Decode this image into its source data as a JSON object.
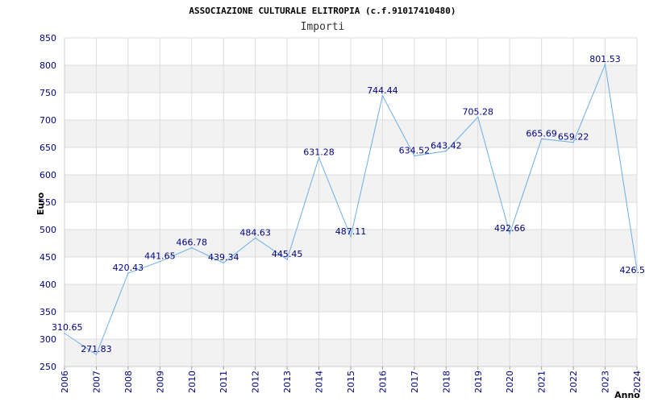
{
  "chart_data": {
    "type": "line",
    "title": "ASSOCIAZIONE CULTURALE ELITROPIA (c.f.91017410480)",
    "subtitle": "Importi",
    "xlabel": "Anno",
    "ylabel": "Euro",
    "ylim": [
      250,
      850
    ],
    "yticks": [
      "250",
      "300",
      "350",
      "400",
      "450",
      "500",
      "550",
      "600",
      "650",
      "700",
      "750",
      "800",
      "850"
    ],
    "categories": [
      "2006",
      "2007",
      "2008",
      "2009",
      "2010",
      "2011",
      "2012",
      "2013",
      "2014",
      "2015",
      "2016",
      "2017",
      "2018",
      "2019",
      "2020",
      "2021",
      "2022",
      "2023",
      "2024"
    ],
    "series": [
      {
        "name": "",
        "values": [
          310.65,
          271.83,
          420.43,
          441.65,
          466.78,
          439.34,
          484.63,
          445.45,
          631.28,
          487.11,
          744.44,
          634.52,
          643.42,
          705.28,
          492.66,
          665.69,
          659.22,
          801.53,
          426.5
        ],
        "labels": [
          "310.65",
          "271.83",
          "420.43",
          "441.65",
          "466.78",
          "439.34",
          "484.63",
          "445.45",
          "631.28",
          "487.11",
          "744.44",
          "634.52",
          "643.42",
          "705.28",
          "492.66",
          "665.69",
          "659.22",
          "801.53",
          "426.5"
        ],
        "color": "#6aaee8"
      }
    ],
    "grid": true,
    "band_colors": [
      "#ffffff",
      "#f2f2f2"
    ],
    "gridline_color": "#dcdcdc"
  }
}
